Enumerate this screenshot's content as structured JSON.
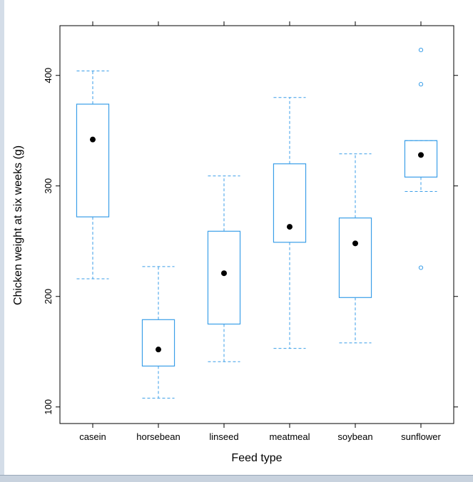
{
  "chart_data": {
    "type": "boxplot",
    "title": "",
    "xlabel": "Feed type",
    "ylabel": "Chicken weight at six weeks (g)",
    "ylim": [
      85,
      445
    ],
    "yticks": [
      100,
      200,
      300,
      400
    ],
    "ytick_labels": [
      "100",
      "200",
      "300",
      "400"
    ],
    "color": "#3a9ee8",
    "median_marker_color": "#000000",
    "categories": [
      "casein",
      "horsebean",
      "linseed",
      "meatmeal",
      "soybean",
      "sunflower"
    ],
    "boxes": [
      {
        "name": "casein",
        "whisker_low": 216,
        "q1": 272,
        "median": 342,
        "q3": 374,
        "whisker_high": 404,
        "outliers": []
      },
      {
        "name": "horsebean",
        "whisker_low": 108,
        "q1": 137,
        "median": 152,
        "q3": 179,
        "whisker_high": 227,
        "outliers": []
      },
      {
        "name": "linseed",
        "whisker_low": 141,
        "q1": 175,
        "median": 221,
        "q3": 259,
        "whisker_high": 309,
        "outliers": []
      },
      {
        "name": "meatmeal",
        "whisker_low": 153,
        "q1": 249,
        "median": 263,
        "q3": 320,
        "whisker_high": 380,
        "outliers": []
      },
      {
        "name": "soybean",
        "whisker_low": 158,
        "q1": 199,
        "median": 248,
        "q3": 271,
        "whisker_high": 329,
        "outliers": []
      },
      {
        "name": "sunflower",
        "whisker_low": 295,
        "q1": 308,
        "median": 328,
        "q3": 341,
        "whisker_high": 341,
        "outliers": [
          226,
          392,
          423
        ]
      }
    ]
  }
}
